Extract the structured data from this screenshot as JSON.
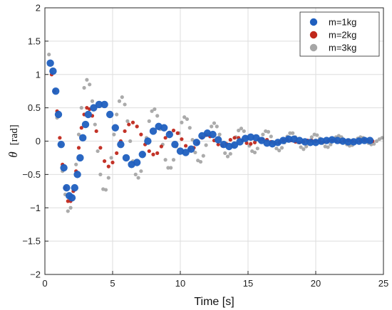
{
  "chart_data": {
    "type": "scatter",
    "title": "",
    "xlabel": "Time [s]",
    "ylabel_symbol": "θ",
    "ylabel_unit": "[rad]",
    "xlim": [
      0,
      25
    ],
    "ylim": [
      -2,
      2
    ],
    "grid": true,
    "legend_position": "top-right",
    "x_ticks": [
      0,
      5,
      10,
      15,
      20,
      25
    ],
    "x_tick_labels": [
      "0",
      "5",
      "10",
      "15",
      "20",
      "25"
    ],
    "y_ticks": [
      -2,
      -1.5,
      -1,
      -0.5,
      0,
      0.5,
      1,
      1.5,
      2
    ],
    "y_tick_labels": [
      "−2",
      "−1.5",
      "−1",
      "−0.5",
      "0",
      "0.5",
      "1",
      "1.5",
      "2"
    ],
    "series": [
      {
        "name": "m=1kg",
        "color": "#1f5fbf",
        "marker": "large-circle",
        "points": [
          [
            0.4,
            1.17
          ],
          [
            0.6,
            1.05
          ],
          [
            0.8,
            0.75
          ],
          [
            1.0,
            0.4
          ],
          [
            1.2,
            -0.05
          ],
          [
            1.4,
            -0.4
          ],
          [
            1.6,
            -0.7
          ],
          [
            1.8,
            -0.82
          ],
          [
            2.0,
            -0.85
          ],
          [
            2.2,
            -0.7
          ],
          [
            2.4,
            -0.5
          ],
          [
            2.6,
            -0.25
          ],
          [
            2.8,
            0.05
          ],
          [
            3.0,
            0.25
          ],
          [
            3.2,
            0.4
          ],
          [
            3.6,
            0.5
          ],
          [
            4.0,
            0.55
          ],
          [
            4.4,
            0.55
          ],
          [
            4.8,
            0.4
          ],
          [
            5.2,
            0.2
          ],
          [
            5.6,
            -0.05
          ],
          [
            6.0,
            -0.25
          ],
          [
            6.4,
            -0.35
          ],
          [
            6.8,
            -0.32
          ],
          [
            7.2,
            -0.2
          ],
          [
            7.6,
            0.0
          ],
          [
            8.0,
            0.15
          ],
          [
            8.4,
            0.22
          ],
          [
            8.8,
            0.2
          ],
          [
            9.2,
            0.1
          ],
          [
            9.6,
            -0.05
          ],
          [
            10.0,
            -0.15
          ],
          [
            10.4,
            -0.17
          ],
          [
            10.8,
            -0.12
          ],
          [
            11.2,
            -0.02
          ],
          [
            11.6,
            0.08
          ],
          [
            12.0,
            0.12
          ],
          [
            12.4,
            0.1
          ],
          [
            12.8,
            0.02
          ],
          [
            13.2,
            -0.05
          ],
          [
            13.6,
            -0.08
          ],
          [
            14.0,
            -0.06
          ],
          [
            14.4,
            -0.01
          ],
          [
            14.8,
            0.04
          ],
          [
            15.2,
            0.06
          ],
          [
            15.6,
            0.05
          ],
          [
            16.0,
            0.01
          ],
          [
            16.4,
            -0.03
          ],
          [
            16.8,
            -0.04
          ],
          [
            17.2,
            -0.02
          ],
          [
            17.6,
            0.01
          ],
          [
            18.0,
            0.03
          ],
          [
            18.4,
            0.03
          ],
          [
            18.8,
            0.01
          ],
          [
            19.2,
            -0.01
          ],
          [
            19.6,
            -0.02
          ],
          [
            20.0,
            -0.02
          ],
          [
            20.4,
            0.0
          ],
          [
            20.8,
            0.01
          ],
          [
            21.2,
            0.02
          ],
          [
            21.6,
            0.01
          ],
          [
            22.0,
            0.0
          ],
          [
            22.4,
            -0.01
          ],
          [
            22.8,
            -0.01
          ],
          [
            23.2,
            0.0
          ],
          [
            23.6,
            0.01
          ],
          [
            24.0,
            0.01
          ]
        ]
      },
      {
        "name": "m=2kg",
        "color": "#c0281c",
        "marker": "small-circle",
        "points": [
          [
            0.5,
            1.0
          ],
          [
            0.7,
            0.75
          ],
          [
            0.9,
            0.45
          ],
          [
            1.1,
            0.05
          ],
          [
            1.3,
            -0.35
          ],
          [
            1.5,
            -0.7
          ],
          [
            1.7,
            -0.9
          ],
          [
            1.9,
            -0.9
          ],
          [
            2.1,
            -0.75
          ],
          [
            2.3,
            -0.45
          ],
          [
            2.5,
            -0.1
          ],
          [
            2.7,
            0.2
          ],
          [
            2.9,
            0.4
          ],
          [
            3.1,
            0.5
          ],
          [
            3.3,
            0.48
          ],
          [
            3.5,
            0.38
          ],
          [
            3.8,
            0.15
          ],
          [
            4.1,
            -0.1
          ],
          [
            4.4,
            -0.3
          ],
          [
            4.7,
            -0.38
          ],
          [
            5.0,
            -0.32
          ],
          [
            5.3,
            -0.18
          ],
          [
            5.6,
            0.0
          ],
          [
            5.9,
            0.15
          ],
          [
            6.2,
            0.25
          ],
          [
            6.5,
            0.28
          ],
          [
            6.8,
            0.22
          ],
          [
            7.1,
            0.1
          ],
          [
            7.4,
            -0.05
          ],
          [
            7.7,
            -0.15
          ],
          [
            8.0,
            -0.2
          ],
          [
            8.3,
            -0.18
          ],
          [
            8.6,
            -0.08
          ],
          [
            8.9,
            0.05
          ],
          [
            9.2,
            0.13
          ],
          [
            9.5,
            0.16
          ],
          [
            9.8,
            0.12
          ],
          [
            10.1,
            0.03
          ],
          [
            10.4,
            -0.07
          ],
          [
            10.7,
            -0.12
          ],
          [
            11.0,
            -0.1
          ],
          [
            11.3,
            -0.03
          ],
          [
            11.6,
            0.05
          ],
          [
            11.9,
            0.09
          ],
          [
            12.2,
            0.07
          ],
          [
            12.5,
            0.01
          ],
          [
            12.8,
            -0.05
          ],
          [
            13.1,
            -0.07
          ],
          [
            13.4,
            -0.04
          ],
          [
            13.7,
            0.02
          ],
          [
            14.0,
            0.05
          ],
          [
            14.3,
            0.05
          ],
          [
            14.6,
            0.01
          ],
          [
            14.9,
            -0.03
          ],
          [
            15.2,
            -0.04
          ],
          [
            15.5,
            -0.02
          ],
          [
            15.8,
            0.02
          ],
          [
            16.1,
            0.03
          ],
          [
            16.4,
            0.02
          ],
          [
            16.7,
            -0.01
          ],
          [
            17.0,
            -0.03
          ],
          [
            17.3,
            -0.02
          ],
          [
            17.6,
            0.01
          ],
          [
            17.9,
            0.02
          ],
          [
            18.2,
            0.01
          ],
          [
            18.5,
            -0.01
          ],
          [
            18.8,
            -0.02
          ],
          [
            19.1,
            -0.01
          ],
          [
            19.4,
            0.01
          ],
          [
            19.7,
            0.01
          ],
          [
            20.0,
            0.0
          ],
          [
            20.3,
            -0.01
          ],
          [
            20.6,
            -0.01
          ],
          [
            20.9,
            0.0
          ],
          [
            21.2,
            0.01
          ],
          [
            21.5,
            0.0
          ],
          [
            21.8,
            -0.01
          ],
          [
            22.1,
            0.0
          ],
          [
            22.4,
            0.01
          ],
          [
            22.7,
            0.0
          ],
          [
            23.0,
            -0.01
          ],
          [
            23.3,
            0.0
          ],
          [
            23.6,
            0.01
          ],
          [
            23.9,
            0.0
          ],
          [
            24.2,
            0.0
          ]
        ]
      },
      {
        "name": "m=3kg",
        "color": "#a6a6a6",
        "marker": "small-circle",
        "points": [
          [
            0.3,
            1.3
          ],
          [
            0.5,
            1.05
          ],
          [
            0.7,
            0.75
          ],
          [
            0.9,
            0.35
          ],
          [
            1.1,
            -0.05
          ],
          [
            1.3,
            -0.45
          ],
          [
            1.5,
            -0.8
          ],
          [
            1.7,
            -1.05
          ],
          [
            1.9,
            -1.0
          ],
          [
            2.1,
            -0.75
          ],
          [
            2.3,
            -0.35
          ],
          [
            2.5,
            0.1
          ],
          [
            2.7,
            0.5
          ],
          [
            2.9,
            0.8
          ],
          [
            3.1,
            0.92
          ],
          [
            3.3,
            0.85
          ],
          [
            3.5,
            0.6
          ],
          [
            3.7,
            0.25
          ],
          [
            3.9,
            -0.15
          ],
          [
            4.1,
            -0.5
          ],
          [
            4.3,
            -0.72
          ],
          [
            4.5,
            -0.73
          ],
          [
            4.7,
            -0.55
          ],
          [
            4.9,
            -0.25
          ],
          [
            5.1,
            0.1
          ],
          [
            5.3,
            0.4
          ],
          [
            5.5,
            0.6
          ],
          [
            5.7,
            0.66
          ],
          [
            5.9,
            0.55
          ],
          [
            6.1,
            0.3
          ],
          [
            6.3,
            0.0
          ],
          [
            6.5,
            -0.3
          ],
          [
            6.7,
            -0.5
          ],
          [
            6.9,
            -0.55
          ],
          [
            7.1,
            -0.45
          ],
          [
            7.3,
            -0.2
          ],
          [
            7.5,
            0.05
          ],
          [
            7.7,
            0.3
          ],
          [
            7.9,
            0.45
          ],
          [
            8.1,
            0.48
          ],
          [
            8.3,
            0.38
          ],
          [
            8.5,
            0.18
          ],
          [
            8.7,
            -0.05
          ],
          [
            8.9,
            -0.28
          ],
          [
            9.1,
            -0.4
          ],
          [
            9.3,
            -0.4
          ],
          [
            9.5,
            -0.28
          ],
          [
            9.7,
            -0.08
          ],
          [
            9.9,
            0.12
          ],
          [
            10.1,
            0.28
          ],
          [
            10.3,
            0.36
          ],
          [
            10.5,
            0.33
          ],
          [
            10.7,
            0.2
          ],
          [
            10.9,
            0.02
          ],
          [
            11.1,
            -0.17
          ],
          [
            11.3,
            -0.29
          ],
          [
            11.5,
            -0.31
          ],
          [
            11.7,
            -0.22
          ],
          [
            11.9,
            -0.06
          ],
          [
            12.1,
            0.1
          ],
          [
            12.3,
            0.22
          ],
          [
            12.5,
            0.27
          ],
          [
            12.7,
            0.22
          ],
          [
            12.9,
            0.1
          ],
          [
            13.1,
            -0.05
          ],
          [
            13.3,
            -0.18
          ],
          [
            13.5,
            -0.23
          ],
          [
            13.7,
            -0.19
          ],
          [
            13.9,
            -0.07
          ],
          [
            14.1,
            0.06
          ],
          [
            14.3,
            0.16
          ],
          [
            14.5,
            0.19
          ],
          [
            14.7,
            0.15
          ],
          [
            14.9,
            0.05
          ],
          [
            15.1,
            -0.07
          ],
          [
            15.3,
            -0.15
          ],
          [
            15.5,
            -0.17
          ],
          [
            15.7,
            -0.11
          ],
          [
            15.9,
            0.0
          ],
          [
            16.1,
            0.1
          ],
          [
            16.3,
            0.15
          ],
          [
            16.5,
            0.14
          ],
          [
            16.7,
            0.07
          ],
          [
            16.9,
            -0.03
          ],
          [
            17.1,
            -0.11
          ],
          [
            17.3,
            -0.14
          ],
          [
            17.5,
            -0.1
          ],
          [
            17.7,
            -0.02
          ],
          [
            17.9,
            0.07
          ],
          [
            18.1,
            0.12
          ],
          [
            18.3,
            0.12
          ],
          [
            18.5,
            0.06
          ],
          [
            18.7,
            -0.02
          ],
          [
            18.9,
            -0.09
          ],
          [
            19.1,
            -0.12
          ],
          [
            19.3,
            -0.08
          ],
          [
            19.5,
            -0.01
          ],
          [
            19.7,
            0.06
          ],
          [
            19.9,
            0.1
          ],
          [
            20.1,
            0.09
          ],
          [
            20.3,
            0.04
          ],
          [
            20.5,
            -0.03
          ],
          [
            20.7,
            -0.08
          ],
          [
            20.9,
            -0.09
          ],
          [
            21.1,
            -0.05
          ],
          [
            21.3,
            0.01
          ],
          [
            21.5,
            0.06
          ],
          [
            21.7,
            0.08
          ],
          [
            21.9,
            0.06
          ],
          [
            22.1,
            0.01
          ],
          [
            22.3,
            -0.05
          ],
          [
            22.5,
            -0.07
          ],
          [
            22.7,
            -0.06
          ],
          [
            22.9,
            -0.01
          ],
          [
            23.1,
            0.04
          ],
          [
            23.3,
            0.06
          ],
          [
            23.5,
            0.05
          ],
          [
            23.7,
            0.01
          ],
          [
            23.9,
            -0.03
          ],
          [
            24.1,
            -0.05
          ],
          [
            24.3,
            -0.04
          ],
          [
            24.5,
            0.0
          ],
          [
            24.7,
            0.03
          ],
          [
            24.9,
            0.05
          ]
        ]
      }
    ]
  }
}
